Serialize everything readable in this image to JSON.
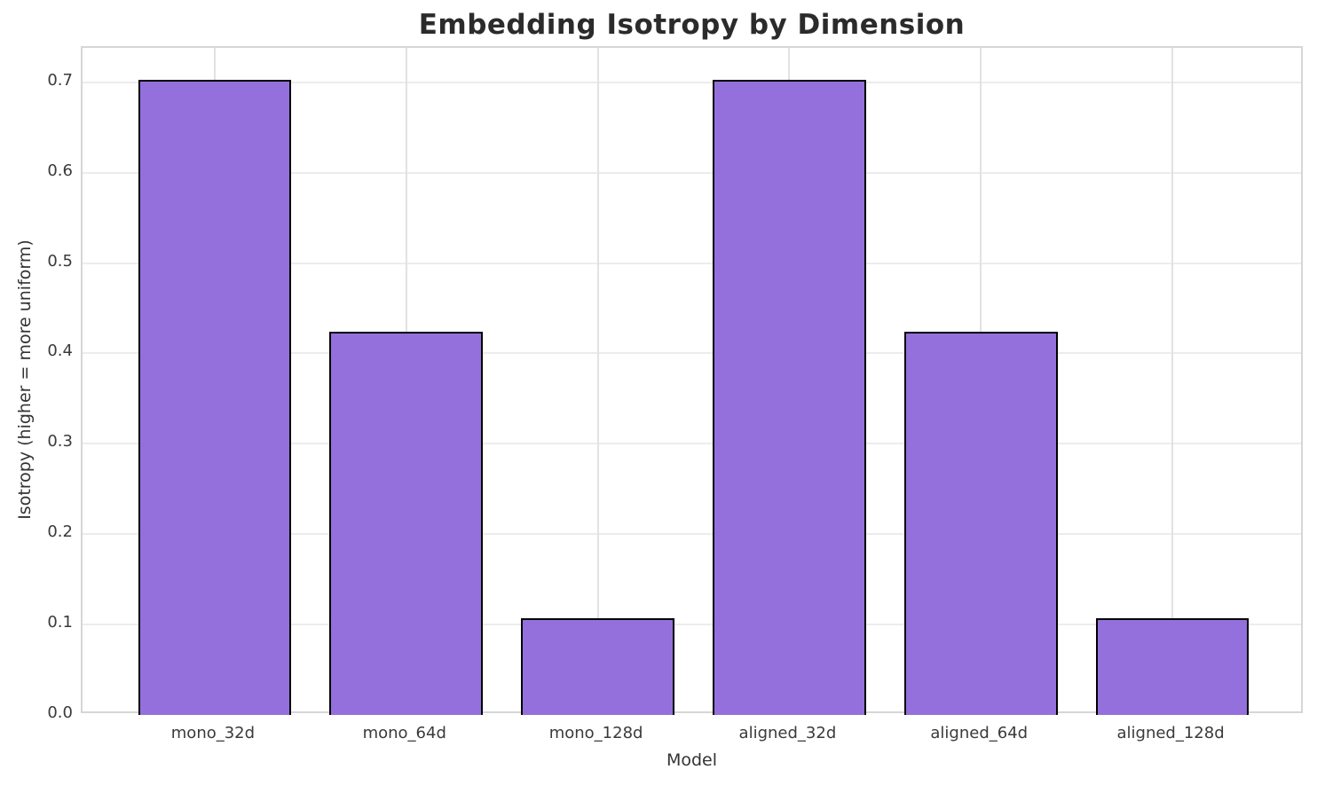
{
  "chart_data": {
    "type": "bar",
    "title": "Embedding Isotropy by Dimension",
    "xlabel": "Model",
    "ylabel": "Isotropy (higher = more uniform)",
    "categories": [
      "mono_32d",
      "mono_64d",
      "mono_128d",
      "aligned_32d",
      "aligned_64d",
      "aligned_128d"
    ],
    "values": [
      0.703,
      0.424,
      0.107,
      0.703,
      0.424,
      0.107
    ],
    "yticks": [
      0.0,
      0.1,
      0.2,
      0.3,
      0.4,
      0.5,
      0.6,
      0.7
    ],
    "ytick_labels": [
      "0.0",
      "0.1",
      "0.2",
      "0.3",
      "0.4",
      "0.5",
      "0.6",
      "0.7"
    ],
    "ylim": [
      0,
      0.738
    ],
    "xlim": [
      -0.69,
      5.69
    ],
    "bar_width_units": 0.8,
    "grid": true,
    "legend": null,
    "colors": {
      "bar_fill": "#9370DB",
      "bar_edge": "#000000",
      "grid_line": "#ececec",
      "spine": "#d6d6d6",
      "title_text": "#2b2b2b",
      "tick_text": "#3a3a3a",
      "axis_label_text": "#333333",
      "background": "#ffffff"
    }
  }
}
